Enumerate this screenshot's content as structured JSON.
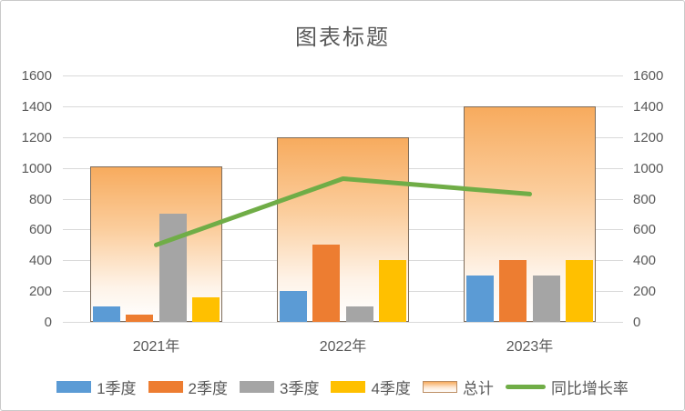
{
  "chart_data": {
    "type": "combo-bar-line",
    "title": "图表标题",
    "categories": [
      "2021年",
      "2022年",
      "2023年"
    ],
    "bar_series": [
      {
        "name": "1季度",
        "key": "q1",
        "color": "#5B9BD5",
        "values": [
          100,
          200,
          300
        ]
      },
      {
        "name": "2季度",
        "key": "q2",
        "color": "#ED7D31",
        "values": [
          50,
          500,
          400
        ]
      },
      {
        "name": "3季度",
        "key": "q3",
        "color": "#A5A5A5",
        "values": [
          700,
          100,
          300
        ]
      },
      {
        "name": "4季度",
        "key": "q4",
        "color": "#FFC000",
        "values": [
          160,
          400,
          400
        ]
      }
    ],
    "total_series": {
      "name": "总计",
      "key": "total",
      "values": [
        1010,
        1200,
        1400
      ]
    },
    "line_series": {
      "name": "同比增长率",
      "key": "yoy-growth",
      "color": "#70AD47",
      "values": [
        500,
        930,
        830
      ]
    },
    "y_axis": {
      "min": 0,
      "max": 1600,
      "step": 200,
      "ticks": [
        "0",
        "200",
        "400",
        "600",
        "800",
        "1000",
        "1200",
        "1400",
        "1600"
      ],
      "sides": [
        "left",
        "right"
      ]
    },
    "legend_position": "bottom",
    "grid": "horizontal",
    "colors": {
      "grid": "#D9D9D9",
      "text": "#595959",
      "total_gradient_top": "#F7AB5E",
      "total_border": "#7D6C5B",
      "line": "#70AD47",
      "background": "#FFFFFF",
      "frame_border": "#C9C9C9"
    }
  }
}
